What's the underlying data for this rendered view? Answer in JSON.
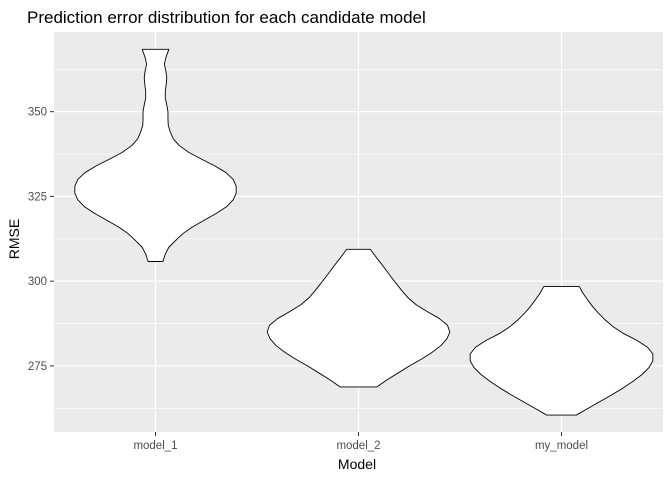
{
  "chart_data": {
    "type": "violin",
    "title": "Prediction error distribution for each candidate model",
    "xlabel": "Model",
    "ylabel": "RMSE",
    "categories": [
      "model_1",
      "model_2",
      "my_model"
    ],
    "ylim": [
      255.5,
      373.5
    ],
    "yticks": [
      275,
      300,
      325,
      350
    ],
    "grid": true,
    "legend": "none",
    "colors": {
      "panel_bg": "#ebebeb",
      "grid_major": "#ffffff",
      "violin_fill": "#ffffff",
      "violin_stroke": "#000000"
    },
    "violins": [
      {
        "category": "model_1",
        "range": [
          305.8,
          368.4
        ],
        "profile": [
          [
            305.8,
            0.25
          ],
          [
            308,
            0.33
          ],
          [
            310,
            0.45
          ],
          [
            312,
            0.68
          ],
          [
            314,
            0.92
          ],
          [
            316,
            1.25
          ],
          [
            318,
            1.65
          ],
          [
            320,
            2.05
          ],
          [
            322,
            2.4
          ],
          [
            324,
            2.62
          ],
          [
            326,
            2.72
          ],
          [
            328,
            2.72
          ],
          [
            330,
            2.62
          ],
          [
            332,
            2.38
          ],
          [
            334,
            2.0
          ],
          [
            336,
            1.55
          ],
          [
            338,
            1.12
          ],
          [
            340,
            0.8
          ],
          [
            342,
            0.6
          ],
          [
            344,
            0.5
          ],
          [
            346,
            0.43
          ],
          [
            348,
            0.42
          ],
          [
            350,
            0.42
          ],
          [
            352,
            0.38
          ],
          [
            354,
            0.33
          ],
          [
            356,
            0.33
          ],
          [
            358,
            0.36
          ],
          [
            360,
            0.38
          ],
          [
            362,
            0.35
          ],
          [
            364,
            0.3
          ],
          [
            366,
            0.35
          ],
          [
            368.4,
            0.45
          ]
        ]
      },
      {
        "category": "model_2",
        "range": [
          268.8,
          309.4
        ],
        "profile": [
          [
            268.8,
            0.62
          ],
          [
            271,
            0.98
          ],
          [
            273,
            1.35
          ],
          [
            275,
            1.72
          ],
          [
            277,
            2.12
          ],
          [
            279,
            2.48
          ],
          [
            281,
            2.78
          ],
          [
            283,
            2.98
          ],
          [
            285,
            3.08
          ],
          [
            287,
            3.0
          ],
          [
            289,
            2.72
          ],
          [
            291,
            2.32
          ],
          [
            293,
            1.95
          ],
          [
            295,
            1.68
          ],
          [
            297,
            1.48
          ],
          [
            299,
            1.3
          ],
          [
            301,
            1.12
          ],
          [
            303,
            0.95
          ],
          [
            305,
            0.78
          ],
          [
            307,
            0.6
          ],
          [
            309.4,
            0.4
          ]
        ]
      },
      {
        "category": "my_model",
        "range": [
          260.5,
          298.4
        ],
        "profile": [
          [
            260.5,
            0.5
          ],
          [
            262.5,
            0.9
          ],
          [
            264.5,
            1.3
          ],
          [
            266.5,
            1.7
          ],
          [
            268.5,
            2.08
          ],
          [
            270.5,
            2.42
          ],
          [
            272.5,
            2.72
          ],
          [
            274.5,
            2.95
          ],
          [
            276.5,
            3.08
          ],
          [
            278.5,
            3.08
          ],
          [
            280.5,
            2.9
          ],
          [
            282.5,
            2.55
          ],
          [
            284.5,
            2.1
          ],
          [
            286.5,
            1.75
          ],
          [
            288.5,
            1.48
          ],
          [
            290.5,
            1.25
          ],
          [
            292.5,
            1.05
          ],
          [
            294.5,
            0.88
          ],
          [
            296.5,
            0.72
          ],
          [
            298.4,
            0.6
          ]
        ]
      }
    ]
  }
}
